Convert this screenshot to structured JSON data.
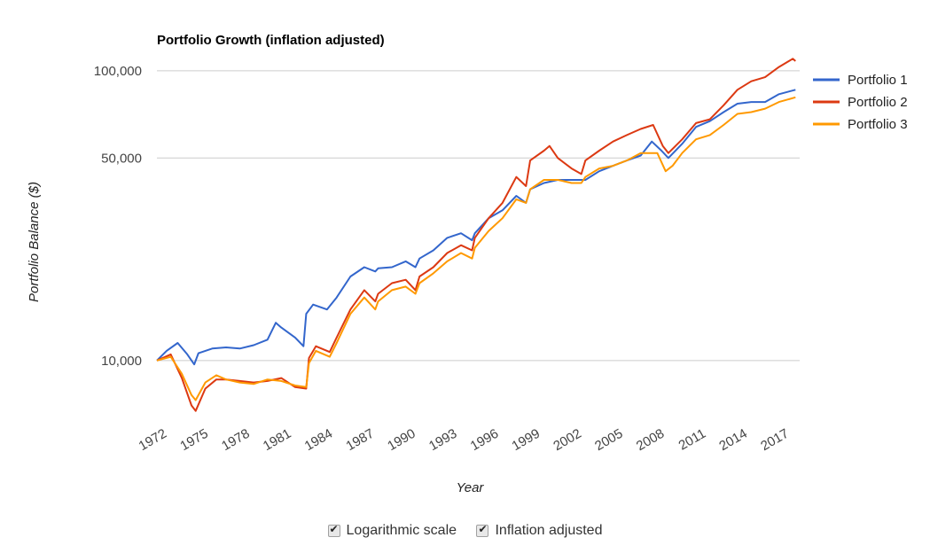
{
  "chart_data": {
    "type": "line",
    "title": "Portfolio Growth (inflation adjusted)",
    "xlabel": "Year",
    "ylabel": "Portfolio Balance ($)",
    "yscale": "log",
    "ylim": [
      6500,
      115000
    ],
    "xlim": [
      1972,
      2018.5
    ],
    "x_ticks": [
      "1972",
      "1975",
      "1978",
      "1981",
      "1984",
      "1987",
      "1990",
      "1993",
      "1996",
      "1999",
      "2002",
      "2005",
      "2008",
      "2011",
      "2014",
      "2017"
    ],
    "y_ticks": [
      {
        "value": 10000,
        "label": "10,000"
      },
      {
        "value": 50000,
        "label": "50,000"
      },
      {
        "value": 100000,
        "label": "100,000"
      }
    ],
    "grid": true,
    "legend_position": "right",
    "series": [
      {
        "name": "Portfolio 1",
        "color": "#3366cc",
        "points": [
          [
            1972,
            10000
          ],
          [
            1972.7,
            10800
          ],
          [
            1973.5,
            11500
          ],
          [
            1974.2,
            10500
          ],
          [
            1974.7,
            9700
          ],
          [
            1975,
            10600
          ],
          [
            1976,
            11000
          ],
          [
            1977,
            11100
          ],
          [
            1978,
            11000
          ],
          [
            1979,
            11300
          ],
          [
            1980,
            11800
          ],
          [
            1980.6,
            13500
          ],
          [
            1981,
            13000
          ],
          [
            1982,
            12000
          ],
          [
            1982.6,
            11200
          ],
          [
            1982.8,
            14500
          ],
          [
            1983.3,
            15600
          ],
          [
            1984.3,
            15000
          ],
          [
            1985,
            16500
          ],
          [
            1986,
            19500
          ],
          [
            1987,
            21000
          ],
          [
            1987.8,
            20300
          ],
          [
            1988,
            20800
          ],
          [
            1989,
            21000
          ],
          [
            1990,
            22000
          ],
          [
            1990.7,
            21000
          ],
          [
            1991,
            22500
          ],
          [
            1992,
            24000
          ],
          [
            1993,
            26500
          ],
          [
            1994,
            27500
          ],
          [
            1994.8,
            26000
          ],
          [
            1995,
            27500
          ],
          [
            1996,
            31000
          ],
          [
            1997,
            33000
          ],
          [
            1998,
            37000
          ],
          [
            1998.7,
            35000
          ],
          [
            1999,
            39000
          ],
          [
            2000,
            41000
          ],
          [
            2001,
            42000
          ],
          [
            2002,
            42000
          ],
          [
            2003,
            42000
          ],
          [
            2004,
            45000
          ],
          [
            2005,
            47000
          ],
          [
            2006,
            49000
          ],
          [
            2007,
            51000
          ],
          [
            2007.8,
            57000
          ],
          [
            2008.5,
            53000
          ],
          [
            2009,
            50000
          ],
          [
            2010,
            56000
          ],
          [
            2011,
            64000
          ],
          [
            2012,
            67000
          ],
          [
            2013,
            72000
          ],
          [
            2014,
            77000
          ],
          [
            2015,
            78000
          ],
          [
            2016,
            78000
          ],
          [
            2017,
            83000
          ],
          [
            2018.2,
            86000
          ]
        ]
      },
      {
        "name": "Portfolio 2",
        "color": "#dc3912",
        "points": [
          [
            1972,
            10000
          ],
          [
            1973,
            10500
          ],
          [
            1973.8,
            8700
          ],
          [
            1974.5,
            7000
          ],
          [
            1974.8,
            6700
          ],
          [
            1975.5,
            8000
          ],
          [
            1976.3,
            8600
          ],
          [
            1977,
            8600
          ],
          [
            1978,
            8500
          ],
          [
            1979,
            8400
          ],
          [
            1980,
            8500
          ],
          [
            1981,
            8700
          ],
          [
            1982,
            8100
          ],
          [
            1982.8,
            8000
          ],
          [
            1983,
            10200
          ],
          [
            1983.5,
            11200
          ],
          [
            1984.5,
            10700
          ],
          [
            1985,
            12000
          ],
          [
            1986,
            15000
          ],
          [
            1987,
            17500
          ],
          [
            1987.8,
            16000
          ],
          [
            1988,
            17000
          ],
          [
            1989,
            18500
          ],
          [
            1990,
            19000
          ],
          [
            1990.7,
            17500
          ],
          [
            1991,
            19500
          ],
          [
            1992,
            21000
          ],
          [
            1993,
            23500
          ],
          [
            1994,
            25000
          ],
          [
            1994.8,
            24000
          ],
          [
            1995,
            26500
          ],
          [
            1996,
            31000
          ],
          [
            1997,
            35000
          ],
          [
            1998,
            43000
          ],
          [
            1998.7,
            40000
          ],
          [
            1999,
            49000
          ],
          [
            2000,
            53000
          ],
          [
            2000.4,
            55000
          ],
          [
            2001,
            50000
          ],
          [
            2002,
            46000
          ],
          [
            2002.7,
            44000
          ],
          [
            2003,
            49000
          ],
          [
            2004,
            53000
          ],
          [
            2005,
            57000
          ],
          [
            2006,
            60000
          ],
          [
            2007,
            63000
          ],
          [
            2007.9,
            65000
          ],
          [
            2008.6,
            55000
          ],
          [
            2009,
            52000
          ],
          [
            2010,
            58000
          ],
          [
            2011,
            66000
          ],
          [
            2012,
            68000
          ],
          [
            2013,
            76000
          ],
          [
            2014,
            86000
          ],
          [
            2015,
            92000
          ],
          [
            2016,
            95000
          ],
          [
            2017,
            103000
          ],
          [
            2018,
            110000
          ],
          [
            2018.2,
            108000
          ]
        ]
      },
      {
        "name": "Portfolio 3",
        "color": "#ff9900",
        "points": [
          [
            1972,
            10000
          ],
          [
            1973,
            10300
          ],
          [
            1973.8,
            9000
          ],
          [
            1974.5,
            7600
          ],
          [
            1974.8,
            7300
          ],
          [
            1975.5,
            8400
          ],
          [
            1976.3,
            8900
          ],
          [
            1977,
            8600
          ],
          [
            1978,
            8400
          ],
          [
            1979,
            8300
          ],
          [
            1980,
            8600
          ],
          [
            1981,
            8500
          ],
          [
            1982,
            8200
          ],
          [
            1982.8,
            8100
          ],
          [
            1983,
            9800
          ],
          [
            1983.5,
            10800
          ],
          [
            1984.5,
            10300
          ],
          [
            1985,
            11500
          ],
          [
            1986,
            14500
          ],
          [
            1987,
            16500
          ],
          [
            1987.8,
            15000
          ],
          [
            1988,
            16000
          ],
          [
            1989,
            17500
          ],
          [
            1990,
            18000
          ],
          [
            1990.7,
            17000
          ],
          [
            1991,
            18500
          ],
          [
            1992,
            20000
          ],
          [
            1993,
            22000
          ],
          [
            1994,
            23500
          ],
          [
            1994.8,
            22500
          ],
          [
            1995,
            24500
          ],
          [
            1996,
            28000
          ],
          [
            1997,
            31000
          ],
          [
            1998,
            36000
          ],
          [
            1998.7,
            35000
          ],
          [
            1999,
            39000
          ],
          [
            2000,
            42000
          ],
          [
            2001,
            42000
          ],
          [
            2002,
            41000
          ],
          [
            2002.7,
            41000
          ],
          [
            2003,
            43000
          ],
          [
            2004,
            46000
          ],
          [
            2005,
            47000
          ],
          [
            2006,
            49000
          ],
          [
            2007,
            52000
          ],
          [
            2008.2,
            52000
          ],
          [
            2008.8,
            45000
          ],
          [
            2009.3,
            47000
          ],
          [
            2010,
            52000
          ],
          [
            2011,
            58000
          ],
          [
            2012,
            60000
          ],
          [
            2013,
            65000
          ],
          [
            2014,
            71000
          ],
          [
            2015,
            72000
          ],
          [
            2016,
            74000
          ],
          [
            2017,
            78000
          ],
          [
            2018.2,
            81000
          ]
        ]
      }
    ]
  },
  "options": {
    "log_scale_label": "Logarithmic scale",
    "log_scale_checked": true,
    "inflation_label": "Inflation adjusted",
    "inflation_checked": true
  }
}
